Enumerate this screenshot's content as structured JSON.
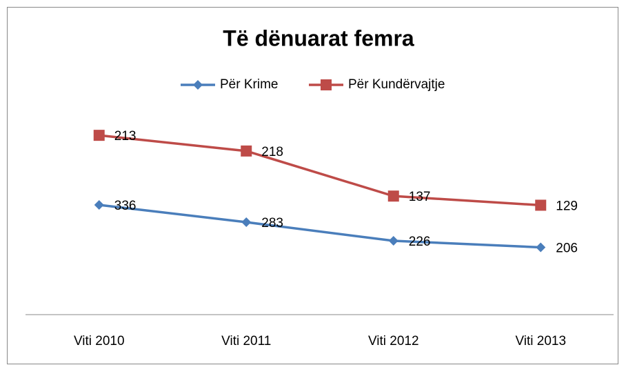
{
  "chart_data": {
    "type": "line",
    "stacked": true,
    "title": "Të dënuarat femra",
    "categories": [
      "Viti 2010",
      "Viti 2011",
      "Viti 2012",
      "Viti 2013"
    ],
    "series": [
      {
        "name": "Për Krime",
        "color": "#4a7ebb",
        "marker": "diamond",
        "values": [
          336,
          283,
          226,
          206
        ]
      },
      {
        "name": "Për Kundërvajtje",
        "color": "#be4b48",
        "marker": "square",
        "values": [
          213,
          218,
          137,
          129
        ]
      }
    ],
    "ylim": [
      0,
      600
    ],
    "legend": "top",
    "data_labels": true
  }
}
